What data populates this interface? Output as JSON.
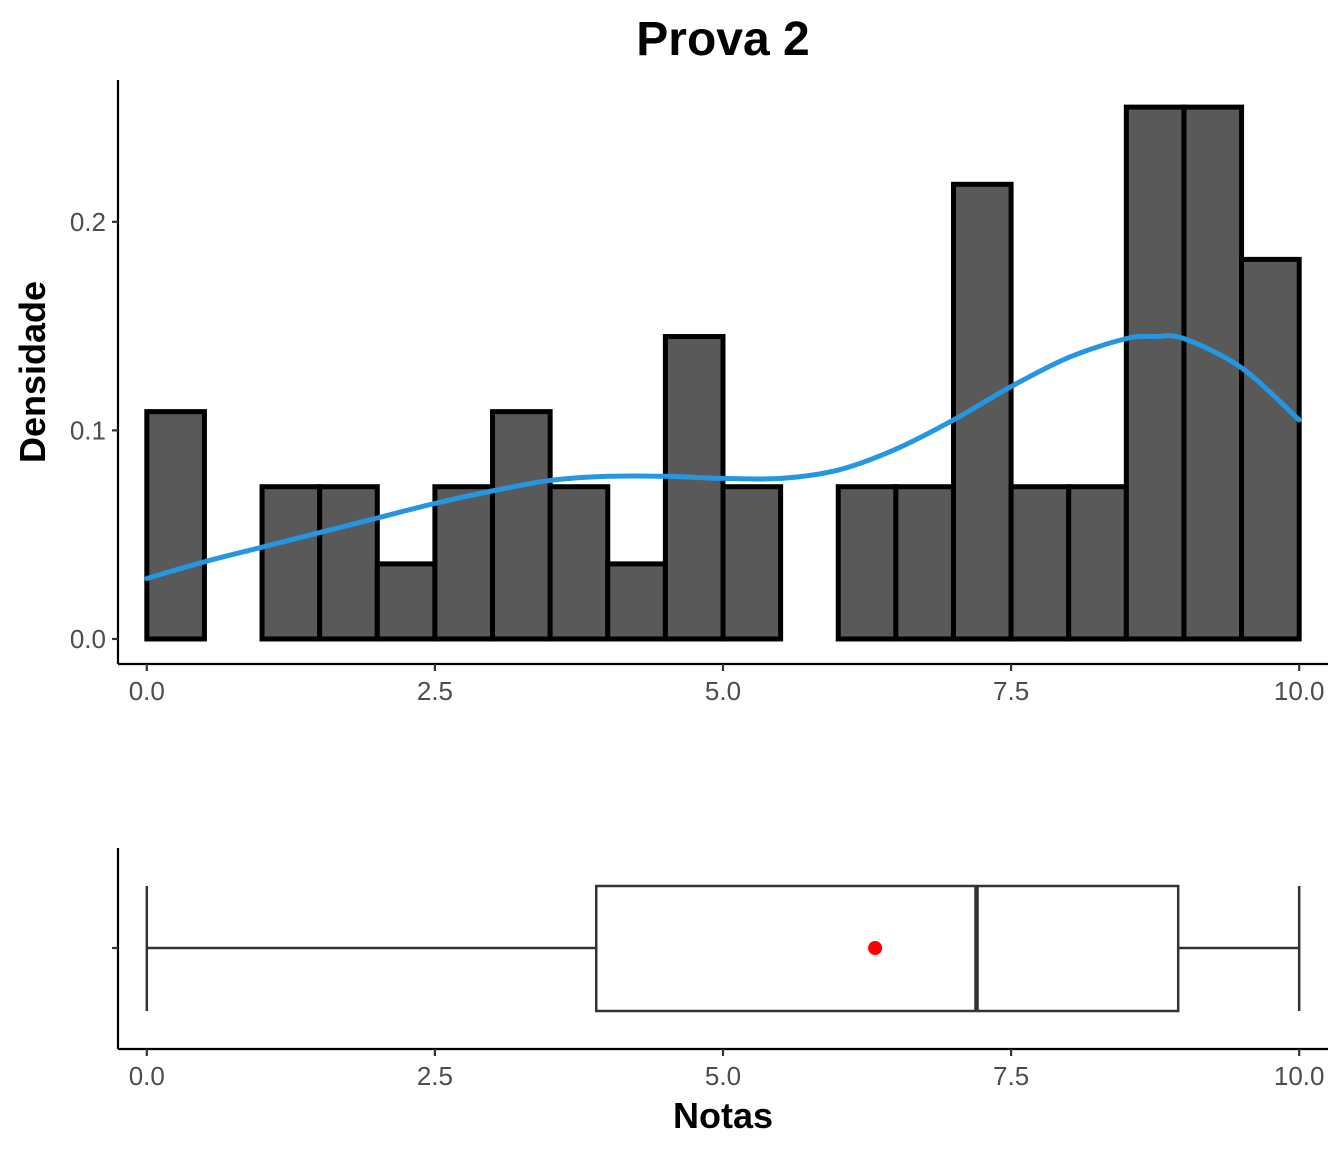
{
  "chart_data": [
    {
      "type": "histogram",
      "title": "Prova 2",
      "xlabel": "",
      "ylabel": "Densidade",
      "xlim": [
        -0.25,
        10.25
      ],
      "ylim": [
        -0.012,
        0.268
      ],
      "x_ticks": [
        0.0,
        2.5,
        5.0,
        7.5,
        10.0
      ],
      "x_tick_labels": [
        "0.0",
        "2.5",
        "5.0",
        "7.5",
        "10.0"
      ],
      "y_ticks": [
        0.0,
        0.1,
        0.2
      ],
      "y_tick_labels": [
        "0.0",
        "0.1",
        "0.2"
      ],
      "bin_width": 0.5,
      "bins": [
        {
          "x0": 0.0,
          "x1": 0.5,
          "density": 0.109
        },
        {
          "x0": 0.5,
          "x1": 1.0,
          "density": 0.0
        },
        {
          "x0": 1.0,
          "x1": 1.5,
          "density": 0.073
        },
        {
          "x0": 1.5,
          "x1": 2.0,
          "density": 0.073
        },
        {
          "x0": 2.0,
          "x1": 2.5,
          "density": 0.036
        },
        {
          "x0": 2.5,
          "x1": 3.0,
          "density": 0.073
        },
        {
          "x0": 3.0,
          "x1": 3.5,
          "density": 0.109
        },
        {
          "x0": 3.5,
          "x1": 4.0,
          "density": 0.073
        },
        {
          "x0": 4.0,
          "x1": 4.5,
          "density": 0.036
        },
        {
          "x0": 4.5,
          "x1": 5.0,
          "density": 0.145
        },
        {
          "x0": 5.0,
          "x1": 5.5,
          "density": 0.073
        },
        {
          "x0": 5.5,
          "x1": 6.0,
          "density": 0.0
        },
        {
          "x0": 6.0,
          "x1": 6.5,
          "density": 0.073
        },
        {
          "x0": 6.5,
          "x1": 7.0,
          "density": 0.073
        },
        {
          "x0": 7.0,
          "x1": 7.5,
          "density": 0.218
        },
        {
          "x0": 7.5,
          "x1": 8.0,
          "density": 0.073
        },
        {
          "x0": 8.0,
          "x1": 8.5,
          "density": 0.073
        },
        {
          "x0": 8.5,
          "x1": 9.0,
          "density": 0.255
        },
        {
          "x0": 9.0,
          "x1": 9.5,
          "density": 0.255
        },
        {
          "x0": 9.5,
          "x1": 10.0,
          "density": 0.182
        }
      ],
      "density_curve": {
        "color": "#2596e1",
        "x": [
          0.0,
          0.5,
          1.0,
          1.5,
          2.0,
          2.5,
          3.0,
          3.5,
          4.0,
          4.5,
          5.0,
          5.5,
          6.0,
          6.5,
          7.0,
          7.5,
          8.0,
          8.5,
          8.75,
          9.0,
          9.5,
          10.0
        ],
        "y": [
          0.029,
          0.037,
          0.044,
          0.051,
          0.058,
          0.065,
          0.071,
          0.076,
          0.078,
          0.078,
          0.077,
          0.077,
          0.081,
          0.091,
          0.105,
          0.121,
          0.135,
          0.144,
          0.145,
          0.144,
          0.13,
          0.105
        ]
      }
    },
    {
      "type": "boxplot",
      "xlabel": "Notas",
      "xlim": [
        -0.25,
        10.25
      ],
      "x_ticks": [
        0.0,
        2.5,
        5.0,
        7.5,
        10.0
      ],
      "x_tick_labels": [
        "0.0",
        "2.5",
        "5.0",
        "7.5",
        "10.0"
      ],
      "whisker_low": 0.0,
      "q1": 3.9,
      "median": 7.2,
      "q3": 8.95,
      "whisker_high": 10.0,
      "mean": 6.32,
      "mean_color": "#ff0000"
    }
  ]
}
